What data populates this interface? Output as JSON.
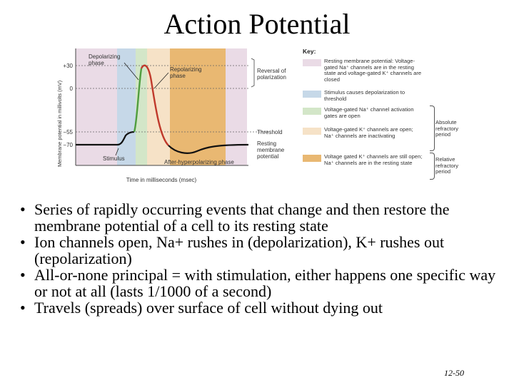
{
  "slide": {
    "title": "Action Potential",
    "page_number": "12-50"
  },
  "figure": {
    "y_axis_label": "Membrane potential in millivolts (mV)",
    "x_axis_label": "Time in milliseconds (msec)",
    "y_ticks": [
      "+30",
      "0",
      "−55",
      "−70"
    ],
    "callouts": {
      "depolarizing": [
        "Depolarizing",
        "phase"
      ],
      "repolarizing": [
        "Repolarizing",
        "phase"
      ],
      "reversal": [
        "Reversal of",
        "polarization"
      ],
      "threshold": "Threshold",
      "resting": [
        "Resting",
        "membrane",
        "potential"
      ],
      "stimulus": "Stimulus",
      "after_hyper": "After-hyperpolarizing phase"
    },
    "key": {
      "heading": "Key:",
      "items": [
        {
          "text": "Resting membrane potential: Voltage-gated Na⁺ channels are in the resting state and voltage-gated K⁺ channels are closed",
          "color": "#eadbe6"
        },
        {
          "text": "Stimulus causes depolarization to threshold",
          "color": "#c6d8e8"
        },
        {
          "text": "Voltage-gated Na⁺ channel activation gates are open",
          "color": "#d3e6c8"
        },
        {
          "text": "Voltage-gated K⁺ channels are open; Na⁺ channels are inactivating",
          "color": "#f6e2c7"
        },
        {
          "text": "Voltage gated K⁺ channels are still open; Na⁺ channels are in the resting state",
          "color": "#e9b872"
        }
      ],
      "absolute_label": [
        "Absolute",
        "refractory",
        "period"
      ],
      "relative_label": [
        "Relative",
        "refractory",
        "period"
      ]
    }
  },
  "bullets": [
    "Series of rapidly occurring events that change and then restore the membrane potential of a cell to its resting state",
    "Ion channels open, Na+ rushes in (depolarization), K+ rushes out (repolarization)",
    "All-or-none principal = with stimulation, either happens one specific way or not at all (lasts 1/1000 of a second)",
    "Travels (spreads) over surface of cell without dying out"
  ]
}
